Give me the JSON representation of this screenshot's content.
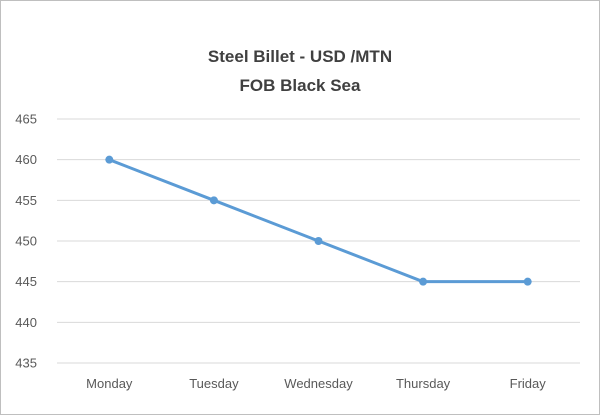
{
  "chart_data": {
    "type": "line",
    "title_lines": [
      "Steel Billet - USD /MTN",
      "FOB Black Sea"
    ],
    "categories": [
      "Monday",
      "Tuesday",
      "Wednesday",
      "Thursday",
      "Friday"
    ],
    "series": [
      {
        "values": [
          460,
          455,
          450,
          445,
          445
        ]
      }
    ],
    "ylim": [
      435,
      465
    ],
    "yticks": [
      435,
      440,
      445,
      450,
      455,
      460,
      465
    ],
    "grid": true,
    "legend": "none",
    "colors": {
      "line": "#5b9bd5",
      "grid": "#d9d9d9",
      "text": "#595959",
      "title": "#404040"
    }
  }
}
